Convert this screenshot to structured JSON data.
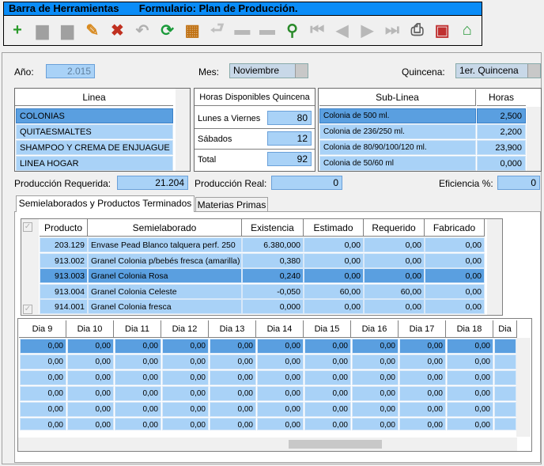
{
  "toolbar": {
    "title": "Barra de Herramientas       Formulario: Plan de Producción.",
    "icons": [
      "add-icon",
      "save-icon",
      "save-as-icon",
      "edit-icon",
      "delete-icon",
      "undo-icon",
      "refresh-icon",
      "film-icon",
      "back-icon",
      "disabled-icon",
      "disabled-icon",
      "search-icon",
      "first-icon",
      "prev-icon",
      "next-icon",
      "last-icon",
      "print-icon",
      "gift-icon",
      "home-icon"
    ]
  },
  "form": {
    "anio_label": "Año:",
    "anio_value": "2.015",
    "mes_label": "Mes:",
    "mes_value": "Noviembre",
    "quincena_label": "Quincena:",
    "quincena_value": "1er. Quincena",
    "linea": {
      "header": "Linea",
      "items": [
        "COLONIAS",
        "QUITAESMALTES",
        "SHAMPOO Y CREMA DE ENJUAGUE",
        "LINEA HOGAR"
      ],
      "selected": 0
    },
    "horas": {
      "header": "Horas Disponibles Quincena",
      "rows": [
        {
          "label": "Lunes a Viernes",
          "value": "80"
        },
        {
          "label": "Sábados",
          "value": "12"
        },
        {
          "label": "Total",
          "value": "92"
        }
      ]
    },
    "sublinea": {
      "header": "Sub-Linea",
      "horas_header": "Horas",
      "items": [
        {
          "name": "Colonia de 500 ml.",
          "horas": "2,500"
        },
        {
          "name": "Colonia de 236/250 ml.",
          "horas": "2,200"
        },
        {
          "name": "Colonia de 80/90/100/120 ml.",
          "horas": "23,900"
        },
        {
          "name": "Colonia de 50/60 ml",
          "horas": "0,000"
        }
      ],
      "selected": 0
    },
    "prod_req_label": "Producción Requerida:",
    "prod_req_value": "21.204",
    "prod_real_label": "Producción Real:",
    "prod_real_value": "0",
    "eficiencia_label": "Eficiencia %:",
    "eficiencia_value": "0"
  },
  "tabs": [
    "Semielaborados y Productos Terminados",
    "Materias Primas"
  ],
  "grid1": {
    "headers": [
      "Producto",
      "Semielaborado",
      "Existencia",
      "Estimado",
      "Requerido",
      "Fabricado"
    ],
    "rows": [
      [
        "203.129",
        "Envase Pead Blanco talquera perf. 250",
        "6.380,000",
        "0,00",
        "0,00",
        "0,00"
      ],
      [
        "913.002",
        "Granel Colonia p/bebés fresca (amarilla)",
        "0,380",
        "0,00",
        "0,00",
        "0,00"
      ],
      [
        "913.003",
        "Granel Colonia Rosa",
        "0,240",
        "0,00",
        "0,00",
        "0,00"
      ],
      [
        "913.004",
        "Granel Colonia Celeste",
        "-0,050",
        "60,00",
        "60,00",
        "0,00"
      ],
      [
        "914.001",
        "Granel Colonia fresca",
        "0,000",
        "0,00",
        "0,00",
        "0,00"
      ]
    ],
    "selected": 2
  },
  "grid2": {
    "headers": [
      "Dia 9",
      "Dia 10",
      "Dia 11",
      "Dia 12",
      "Dia 13",
      "Dia 14",
      "Dia 15",
      "Dia 16",
      "Dia 17",
      "Dia 18",
      "Dia"
    ],
    "cell_value": "0,00",
    "row_count": 6
  }
}
